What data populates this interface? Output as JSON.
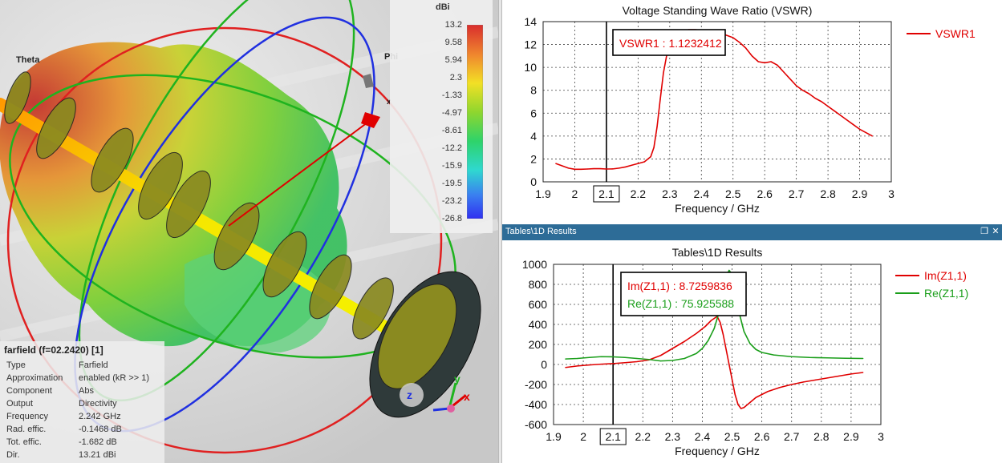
{
  "view3d": {
    "label_theta": "Theta",
    "label_phi": "Phi",
    "label_x_small": "x",
    "axis_x": "x",
    "axis_y": "y",
    "axis_z": "z",
    "colorbar": {
      "unit": "dBi",
      "ticks": [
        "13.2",
        "9.58",
        "5.94",
        "2.3",
        "-1.33",
        "-4.97",
        "-8.61",
        "-12.2",
        "-15.9",
        "-19.5",
        "-23.2",
        "-26.8"
      ]
    },
    "info": {
      "header": "farfield (f=02.2420) [1]",
      "rows": [
        {
          "k": "Type",
          "v": "Farfield"
        },
        {
          "k": "Approximation",
          "v": "enabled (kR >> 1)"
        },
        {
          "k": "Component",
          "v": "Abs"
        },
        {
          "k": "Output",
          "v": "Directivity"
        },
        {
          "k": "Frequency",
          "v": "2.242 GHz"
        },
        {
          "k": "Rad. effic.",
          "v": "-0.1468 dB"
        },
        {
          "k": "Tot. effic.",
          "v": "-1.682 dB"
        },
        {
          "k": "Dir.",
          "v": "13.21 dBi"
        }
      ]
    }
  },
  "panel_bottom_title": "Tables\\1D Results",
  "window_buttons": {
    "restore": "❐",
    "close": "✕"
  },
  "chart_data": [
    {
      "type": "line",
      "title": "Voltage Standing Wave Ratio (VSWR)",
      "xlabel": "Frequency / GHz",
      "ylabel": "",
      "xlim": [
        1.9,
        3
      ],
      "ylim": [
        0,
        14
      ],
      "xticks": [
        "1.9",
        "2",
        "2.1",
        "2.2",
        "2.3",
        "2.4",
        "2.5",
        "2.6",
        "2.7",
        "2.8",
        "2.9",
        "3"
      ],
      "yticks": [
        "0",
        "2",
        "4",
        "6",
        "8",
        "10",
        "12",
        "14"
      ],
      "grid": true,
      "legend_position": "right",
      "marker_x": 2.1,
      "marker_label": "2.1",
      "annotations": [
        {
          "text": "VSWR1 : 1.1232412",
          "color": "#e00000"
        }
      ],
      "series": [
        {
          "name": "VSWR1",
          "color": "#e00000",
          "x": [
            1.94,
            1.96,
            1.98,
            2.0,
            2.02,
            2.04,
            2.06,
            2.08,
            2.1,
            2.12,
            2.14,
            2.16,
            2.18,
            2.2,
            2.22,
            2.24,
            2.25,
            2.26,
            2.27,
            2.28,
            2.29,
            2.3,
            2.32,
            2.34,
            2.36,
            2.38,
            2.4,
            2.42,
            2.44,
            2.46,
            2.48,
            2.5,
            2.52,
            2.54,
            2.56,
            2.58,
            2.6,
            2.62,
            2.64,
            2.66,
            2.68,
            2.7,
            2.72,
            2.74,
            2.76,
            2.78,
            2.8,
            2.82,
            2.84,
            2.86,
            2.88,
            2.9,
            2.92,
            2.94
          ],
          "y": [
            1.6,
            1.4,
            1.2,
            1.1,
            1.1,
            1.12,
            1.15,
            1.15,
            1.12,
            1.13,
            1.2,
            1.3,
            1.45,
            1.6,
            1.75,
            2.2,
            3.0,
            4.8,
            7.2,
            9.5,
            11.0,
            11.8,
            12.6,
            13.1,
            13.3,
            13.3,
            13.25,
            13.2,
            13.1,
            13.0,
            12.8,
            12.6,
            12.2,
            11.7,
            11.0,
            10.5,
            10.4,
            10.5,
            10.2,
            9.6,
            9.0,
            8.4,
            8.0,
            7.7,
            7.3,
            7.0,
            6.6,
            6.2,
            5.8,
            5.4,
            5.0,
            4.6,
            4.3,
            4.0
          ]
        }
      ]
    },
    {
      "type": "line",
      "title": "Tables\\1D Results",
      "xlabel": "Frequency / GHz",
      "ylabel": "",
      "xlim": [
        1.9,
        3
      ],
      "ylim": [
        -600,
        1000
      ],
      "xticks": [
        "1.9",
        "2",
        "2.1",
        "2.2",
        "2.3",
        "2.4",
        "2.5",
        "2.6",
        "2.7",
        "2.8",
        "2.9",
        "3"
      ],
      "yticks": [
        "-600",
        "-400",
        "-200",
        "0",
        "200",
        "400",
        "600",
        "800",
        "1000"
      ],
      "grid": true,
      "legend_position": "right",
      "marker_x": 2.1,
      "marker_label": "2.1",
      "annotations": [
        {
          "text": "Im(Z1,1) : 8.7259836",
          "color": "#e00000"
        },
        {
          "text": "Re(Z1,1) : 75.925588",
          "color": "#1a9e1a"
        }
      ],
      "series": [
        {
          "name": "Im(Z1,1)",
          "color": "#e00000",
          "x": [
            1.94,
            1.98,
            2.02,
            2.06,
            2.1,
            2.14,
            2.18,
            2.22,
            2.26,
            2.3,
            2.34,
            2.38,
            2.41,
            2.43,
            2.45,
            2.46,
            2.47,
            2.48,
            2.49,
            2.5,
            2.51,
            2.52,
            2.53,
            2.54,
            2.56,
            2.58,
            2.62,
            2.66,
            2.7,
            2.74,
            2.78,
            2.82,
            2.86,
            2.9,
            2.94
          ],
          "y": [
            -30,
            -15,
            -5,
            3,
            9,
            18,
            28,
            45,
            90,
            160,
            230,
            310,
            380,
            440,
            480,
            420,
            300,
            150,
            0,
            -150,
            -300,
            -400,
            -440,
            -430,
            -380,
            -330,
            -270,
            -230,
            -200,
            -175,
            -155,
            -135,
            -115,
            -95,
            -80
          ]
        },
        {
          "name": "Re(Z1,1)",
          "color": "#1a9e1a",
          "x": [
            1.94,
            1.98,
            2.02,
            2.06,
            2.1,
            2.14,
            2.18,
            2.22,
            2.26,
            2.3,
            2.34,
            2.38,
            2.4,
            2.42,
            2.44,
            2.46,
            2.47,
            2.48,
            2.49,
            2.5,
            2.51,
            2.52,
            2.54,
            2.56,
            2.58,
            2.6,
            2.64,
            2.7,
            2.76,
            2.82,
            2.88,
            2.94
          ],
          "y": [
            55,
            60,
            70,
            78,
            76,
            70,
            60,
            50,
            35,
            40,
            60,
            110,
            160,
            240,
            360,
            560,
            720,
            880,
            940,
            900,
            760,
            560,
            330,
            210,
            150,
            120,
            95,
            78,
            70,
            66,
            62,
            60
          ]
        }
      ]
    }
  ]
}
